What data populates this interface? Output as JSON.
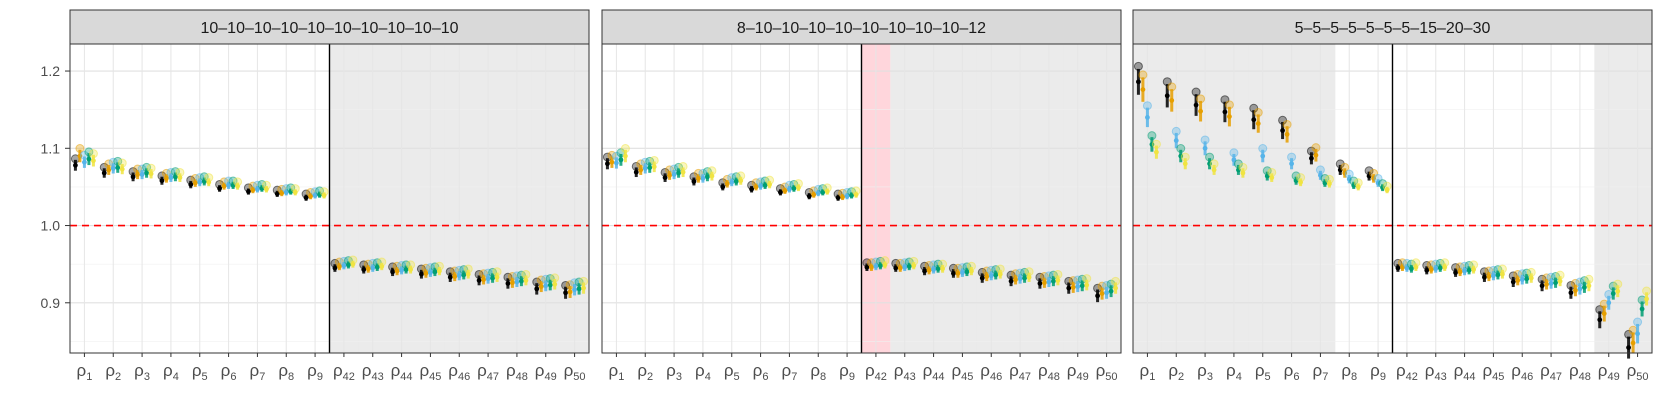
{
  "chart_data": {
    "type": "scatter",
    "ylim": [
      0.835,
      1.235
    ],
    "y_ticks": [
      0.9,
      1.0,
      1.1,
      1.2
    ],
    "y_tick_labels": [
      "0.9",
      "1.0",
      "1.1",
      "1.2"
    ],
    "reference_line": 1.0,
    "reference_line_color": "#ff0000",
    "colors": {
      "black": "#000000",
      "orange": "#E69F00",
      "skyblue": "#56B4E9",
      "green": "#009E73",
      "yellow": "#F0E442",
      "shade": "#ebebeb",
      "highlight": "#ffd6dc",
      "strip": "#d9d9d9",
      "grid": "#ebebeb"
    },
    "series_colors": [
      "#000000",
      "#E69F00",
      "#56B4E9",
      "#009E73",
      "#F0E442"
    ],
    "x_tick_labels": [
      {
        "base": "ρ",
        "sub": "1"
      },
      {
        "base": "ρ",
        "sub": "2"
      },
      {
        "base": "ρ",
        "sub": "3"
      },
      {
        "base": "ρ",
        "sub": "4"
      },
      {
        "base": "ρ",
        "sub": "5"
      },
      {
        "base": "ρ",
        "sub": "6"
      },
      {
        "base": "ρ",
        "sub": "7"
      },
      {
        "base": "ρ",
        "sub": "8"
      },
      {
        "base": "ρ",
        "sub": "9"
      },
      {
        "base": "ρ",
        "sub": "42"
      },
      {
        "base": "ρ",
        "sub": "43"
      },
      {
        "base": "ρ",
        "sub": "44"
      },
      {
        "base": "ρ",
        "sub": "45"
      },
      {
        "base": "ρ",
        "sub": "46"
      },
      {
        "base": "ρ",
        "sub": "47"
      },
      {
        "base": "ρ",
        "sub": "48"
      },
      {
        "base": "ρ",
        "sub": "49"
      },
      {
        "base": "ρ",
        "sub": "50"
      }
    ],
    "panels": [
      {
        "title": "10–10–10–10–10–10–10–10–10–10",
        "shaded_categories": [
          9,
          10,
          11,
          12,
          13,
          14,
          15,
          16,
          17
        ],
        "highlight_categories": [],
        "series_values": [
          [
            1.078,
            1.068,
            1.063,
            1.058,
            1.053,
            1.048,
            1.044,
            1.041,
            1.036,
            0.945,
            0.943,
            0.94,
            0.937,
            0.933,
            0.929,
            0.925,
            0.918,
            0.913
          ],
          [
            1.09,
            1.072,
            1.066,
            1.061,
            1.055,
            1.051,
            1.046,
            1.042,
            1.038,
            0.947,
            0.944,
            0.941,
            0.938,
            0.934,
            0.93,
            0.926,
            0.921,
            0.914
          ],
          [
            1.082,
            1.074,
            1.066,
            1.062,
            1.056,
            1.052,
            1.047,
            1.043,
            1.039,
            0.948,
            0.945,
            0.942,
            0.939,
            0.935,
            0.931,
            0.927,
            0.922,
            0.917
          ],
          [
            1.086,
            1.075,
            1.068,
            1.063,
            1.057,
            1.052,
            1.048,
            1.044,
            1.04,
            0.949,
            0.946,
            0.943,
            0.94,
            0.936,
            0.932,
            0.928,
            0.923,
            0.918
          ],
          [
            1.084,
            1.073,
            1.067,
            1.062,
            1.056,
            1.051,
            1.047,
            1.043,
            1.039,
            0.95,
            0.947,
            0.943,
            0.941,
            0.937,
            0.933,
            0.929,
            0.924,
            0.919
          ]
        ]
      },
      {
        "title": "8–10–10–10–10–10–10–10–10–12",
        "shaded_categories": [
          10,
          11,
          12,
          13,
          14,
          15,
          16,
          17
        ],
        "highlight_categories": [
          9
        ],
        "series_values": [
          [
            1.08,
            1.069,
            1.062,
            1.057,
            1.05,
            1.047,
            1.043,
            1.038,
            1.036,
            0.946,
            0.945,
            0.941,
            0.938,
            0.932,
            0.928,
            0.925,
            0.919,
            0.909
          ],
          [
            1.082,
            1.072,
            1.065,
            1.061,
            1.054,
            1.05,
            1.045,
            1.04,
            1.037,
            0.946,
            0.945,
            0.942,
            0.938,
            0.934,
            0.93,
            0.926,
            0.92,
            0.912
          ],
          [
            1.081,
            1.074,
            1.066,
            1.061,
            1.056,
            1.051,
            1.047,
            1.042,
            1.038,
            0.947,
            0.946,
            0.943,
            0.939,
            0.935,
            0.931,
            0.927,
            0.921,
            0.913
          ],
          [
            1.085,
            1.075,
            1.068,
            1.063,
            1.057,
            1.052,
            1.048,
            1.043,
            1.039,
            0.948,
            0.947,
            0.944,
            0.94,
            0.936,
            0.932,
            0.928,
            0.922,
            0.915
          ],
          [
            1.09,
            1.076,
            1.069,
            1.064,
            1.058,
            1.053,
            1.049,
            1.044,
            1.04,
            0.949,
            0.948,
            0.944,
            0.941,
            0.937,
            0.933,
            0.929,
            0.923,
            0.919
          ]
        ]
      },
      {
        "title": "5–5–5–5–5–5–5–15–20–30",
        "shaded_categories": [
          0,
          1,
          2,
          3,
          4,
          5,
          6,
          16,
          17
        ],
        "highlight_categories": [],
        "series_values": [
          [
            1.186,
            1.168,
            1.156,
            1.147,
            1.137,
            1.123,
            1.087,
            1.072,
            1.064,
            0.945,
            0.942,
            0.939,
            0.933,
            0.927,
            0.922,
            0.913,
            0.878,
            0.842
          ],
          [
            1.176,
            1.162,
            1.148,
            1.141,
            1.132,
            1.118,
            1.091,
            1.068,
            1.061,
            0.946,
            0.943,
            0.94,
            0.934,
            0.929,
            0.924,
            0.916,
            0.886,
            0.848
          ],
          [
            1.14,
            1.11,
            1.1,
            1.085,
            1.09,
            1.08,
            1.065,
            1.06,
            1.055,
            0.945,
            0.944,
            0.941,
            0.935,
            0.93,
            0.925,
            0.918,
            0.9,
            0.86
          ],
          [
            1.105,
            1.09,
            1.08,
            1.072,
            1.064,
            1.058,
            1.055,
            1.052,
            1.049,
            0.944,
            0.945,
            0.942,
            0.936,
            0.931,
            0.926,
            0.92,
            0.912,
            0.892
          ],
          [
            1.095,
            1.08,
            1.072,
            1.068,
            1.062,
            1.056,
            1.054,
            1.05,
            1.046,
            0.946,
            0.946,
            0.943,
            0.937,
            0.932,
            0.928,
            0.922,
            0.915,
            0.905
          ]
        ]
      }
    ]
  }
}
